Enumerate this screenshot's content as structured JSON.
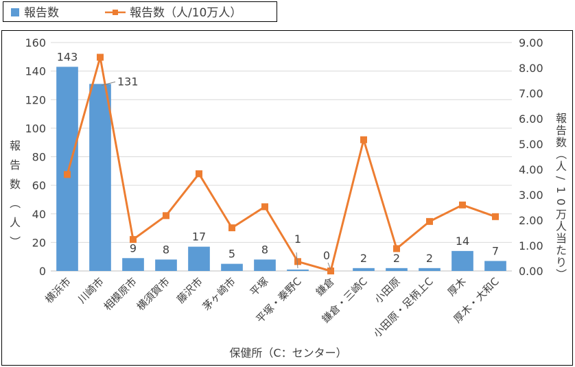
{
  "legend": {
    "bar_label": "報告数",
    "line_label": "報告数（人/10万人）"
  },
  "colors": {
    "bar": "#5b9bd5",
    "line": "#ed7d31",
    "grid": "#d9d9d9",
    "text": "#404040"
  },
  "chart_data": {
    "type": "bar",
    "xlabel": "保健所（C：センター）",
    "ylabel": "報告数（人）",
    "y2label": "報告数（人/10万人当たり）",
    "ylim": [
      0,
      160
    ],
    "y2lim": [
      0,
      9
    ],
    "yticks": [
      "0",
      "20",
      "40",
      "60",
      "80",
      "100",
      "120",
      "140",
      "160"
    ],
    "y2ticks": [
      "0.00",
      "1.00",
      "2.00",
      "3.00",
      "4.00",
      "5.00",
      "6.00",
      "7.00",
      "8.00",
      "9.00"
    ],
    "grid": true,
    "legend_position": "top-left",
    "categories": [
      "横浜市",
      "川崎市",
      "相模原市",
      "横須賀市",
      "藤沢市",
      "茅ヶ崎市",
      "平塚",
      "平塚・秦野C",
      "鎌倉",
      "鎌倉・三崎C",
      "小田原",
      "小田原・足柄上C",
      "厚木",
      "厚木・大和C"
    ],
    "series": [
      {
        "name": "報告数",
        "type": "bar",
        "axis": "left",
        "values": [
          143,
          131,
          9,
          8,
          17,
          5,
          8,
          1,
          0,
          2,
          2,
          2,
          14,
          7
        ],
        "labels": [
          "143",
          "131",
          "9",
          "8",
          "17",
          "5",
          "8",
          "1",
          "0",
          "2",
          "2",
          "2",
          "14",
          "7"
        ]
      },
      {
        "name": "報告数（人/10万人）",
        "type": "line",
        "axis": "right",
        "values": [
          3.8,
          8.42,
          1.24,
          2.18,
          3.83,
          1.7,
          2.53,
          0.37,
          0.0,
          5.17,
          0.88,
          1.95,
          2.6,
          2.14
        ]
      }
    ]
  }
}
